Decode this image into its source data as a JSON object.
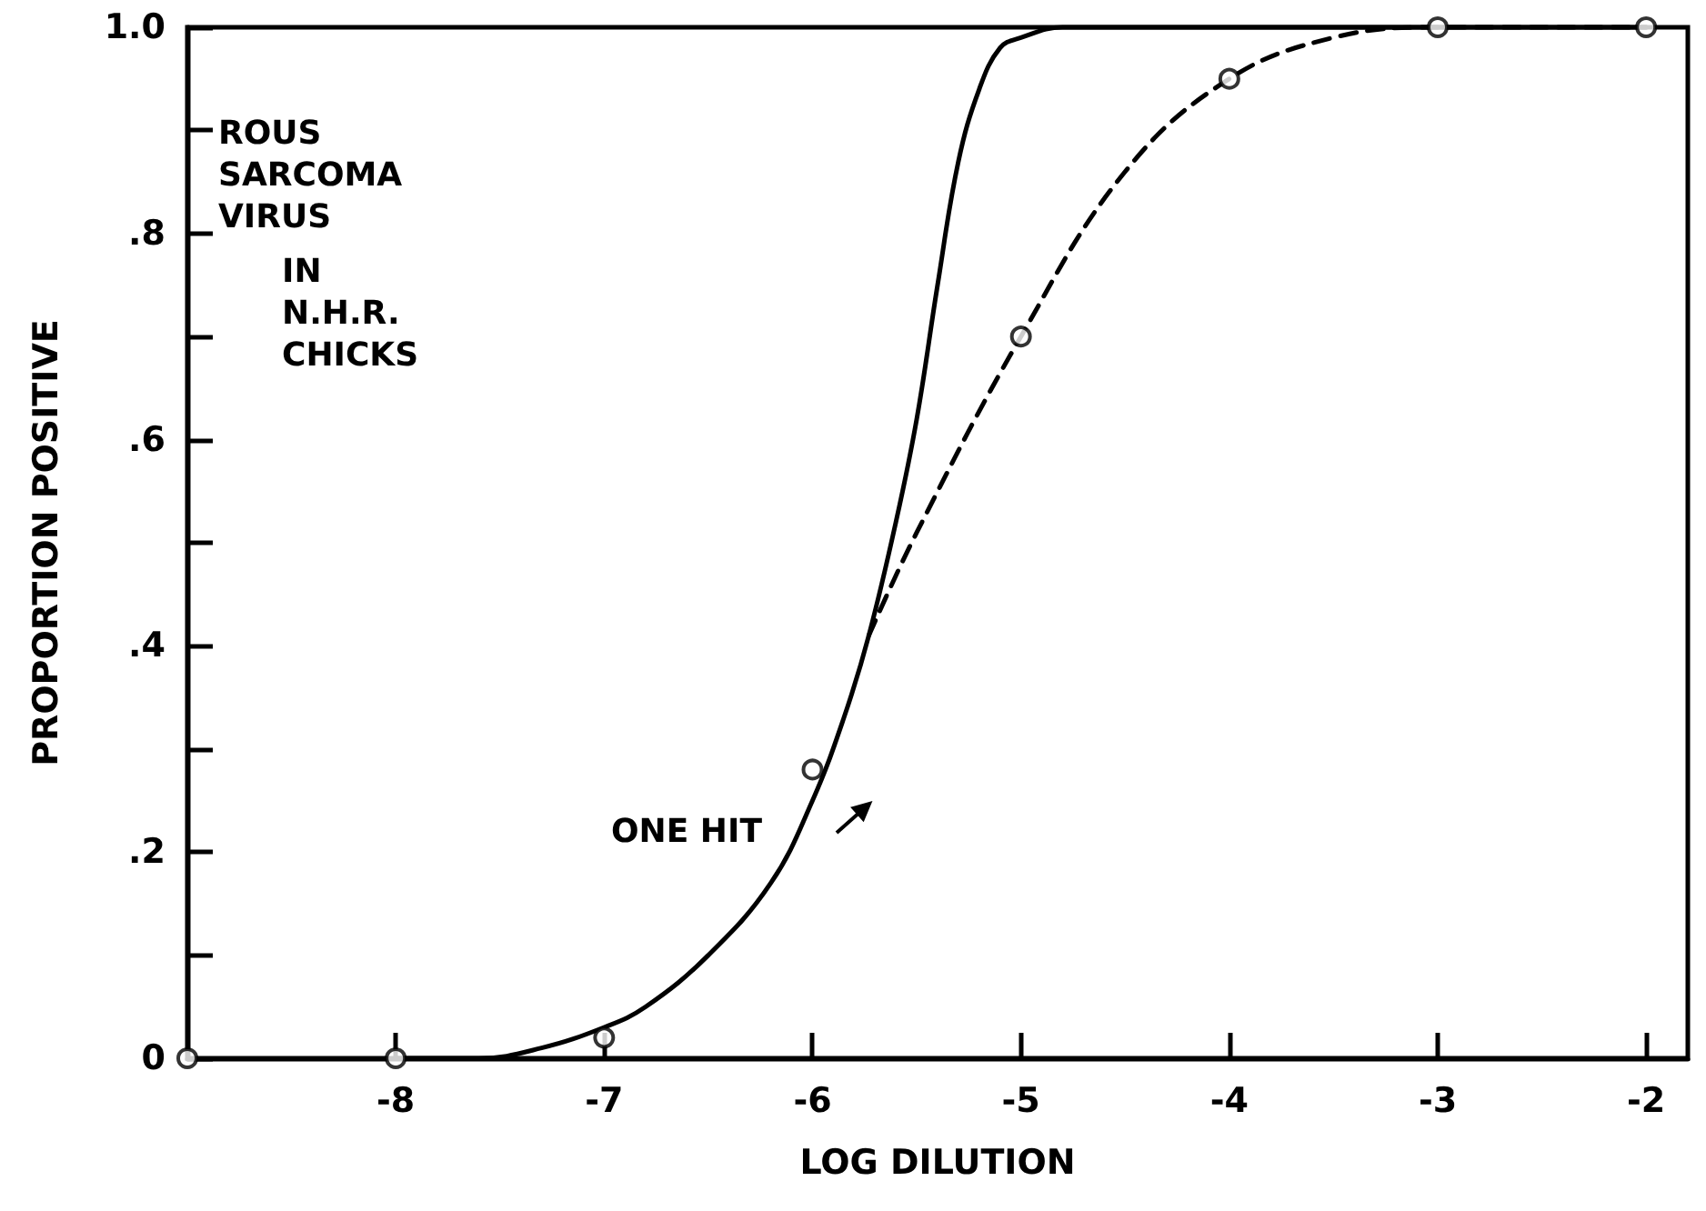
{
  "chart_data": {
    "type": "line",
    "xlabel": "LOG DILUTION",
    "ylabel": "PROPORTION POSITIVE",
    "annotations": [
      "ROUS SARCOMA VIRUS",
      "IN N.H.R. CHICKS",
      "ONE HIT"
    ],
    "series": [
      {
        "color": "#000000",
        "line_style": "solid",
        "marker": "none",
        "x": [
          -8,
          -7.6,
          -7.3,
          -7,
          -6.8,
          -6.5,
          -6.2,
          -6,
          -5.85,
          -5.73,
          -5.6,
          -5.5,
          -5.4,
          -5.3,
          -5.2,
          -5.1,
          -5,
          -4.8,
          -4.6,
          -2
        ],
        "values": [
          0,
          0,
          0.01,
          0.03,
          0.05,
          0.1,
          0.17,
          0.25,
          0.33,
          0.41,
          0.52,
          0.62,
          0.75,
          0.87,
          0.94,
          0.98,
          0.99,
          1,
          1,
          1
        ]
      },
      {
        "color": "#000000",
        "line_style": "dashed",
        "marker": "none",
        "x": [
          -5.73,
          -5.5,
          -5,
          -4.5,
          -4,
          -3.5,
          -3,
          -2
        ],
        "values": [
          0.41,
          0.51,
          0.7,
          0.86,
          0.95,
          0.99,
          1,
          1
        ]
      },
      {
        "type": "scatter",
        "color": "#000000",
        "marker": "circle",
        "x": [
          -9,
          -8,
          -7,
          -6,
          -5,
          -4,
          -3,
          -2
        ],
        "values": [
          0,
          0,
          0.02,
          0.28,
          0.7,
          0.95,
          1,
          1
        ]
      }
    ],
    "xlim": [
      -9,
      -1.8
    ],
    "xticks": [
      -8,
      -7,
      -6,
      -5,
      -4,
      -3,
      -2
    ],
    "ylim": [
      0,
      1
    ],
    "yticks": [
      {
        "value": 0,
        "label": "0"
      },
      {
        "value": 0.1,
        "label": null
      },
      {
        "value": 0.2,
        "label": ".2"
      },
      {
        "value": 0.3,
        "label": null
      },
      {
        "value": 0.4,
        "label": ".4"
      },
      {
        "value": 0.5,
        "label": null
      },
      {
        "value": 0.6,
        "label": ".6"
      },
      {
        "value": 0.7,
        "label": null
      },
      {
        "value": 0.8,
        "label": ".8"
      },
      {
        "value": 0.9,
        "label": null
      },
      {
        "value": 1,
        "label": "1.0"
      }
    ],
    "grid": false
  }
}
